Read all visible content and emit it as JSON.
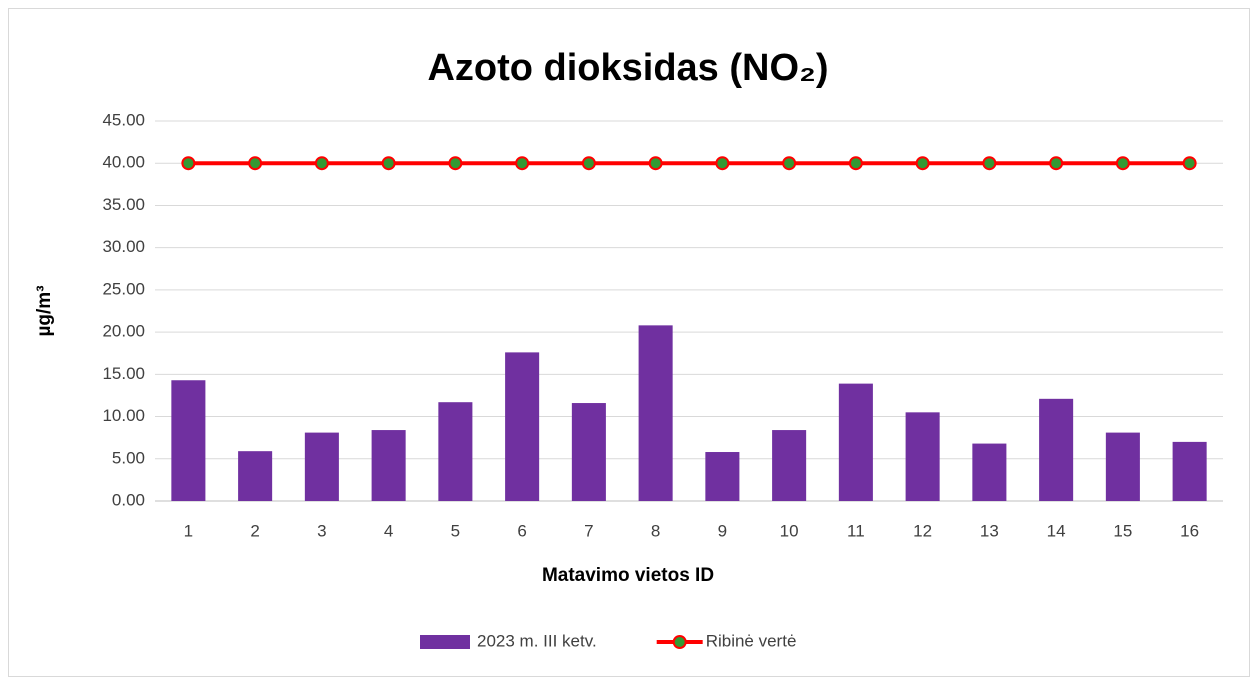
{
  "chart_data": {
    "type": "bar",
    "title": "Azoto dioksidas (NO₂)",
    "x_label": "Matavimo vietos ID",
    "y_label": "µg/m³",
    "categories": [
      "1",
      "2",
      "3",
      "4",
      "5",
      "6",
      "7",
      "8",
      "9",
      "10",
      "11",
      "12",
      "13",
      "14",
      "15",
      "16"
    ],
    "series": [
      {
        "name": "2023 m. III ketv.",
        "type": "bar",
        "color": "#7030a0",
        "values": [
          14.3,
          5.9,
          8.1,
          8.4,
          11.7,
          17.6,
          11.6,
          20.8,
          5.8,
          8.4,
          13.9,
          10.5,
          6.8,
          12.1,
          8.1,
          7.0
        ]
      },
      {
        "name": "Ribinė vertė",
        "type": "line",
        "color": "#ff0000",
        "marker_color": "#339933",
        "values": [
          40,
          40,
          40,
          40,
          40,
          40,
          40,
          40,
          40,
          40,
          40,
          40,
          40,
          40,
          40,
          40
        ]
      }
    ],
    "ylim": [
      0,
      45
    ],
    "yticks": [
      {
        "value": 0,
        "label": "0.00"
      },
      {
        "value": 5,
        "label": "5.00"
      },
      {
        "value": 10,
        "label": "10.00"
      },
      {
        "value": 15,
        "label": "15.00"
      },
      {
        "value": 20,
        "label": "20.00"
      },
      {
        "value": 25,
        "label": "25.00"
      },
      {
        "value": 30,
        "label": "30.00"
      },
      {
        "value": 35,
        "label": "35.00"
      },
      {
        "value": 40,
        "label": "40.00"
      },
      {
        "value": 45,
        "label": "45.00"
      }
    ],
    "grid": true,
    "legend": "bottom"
  }
}
